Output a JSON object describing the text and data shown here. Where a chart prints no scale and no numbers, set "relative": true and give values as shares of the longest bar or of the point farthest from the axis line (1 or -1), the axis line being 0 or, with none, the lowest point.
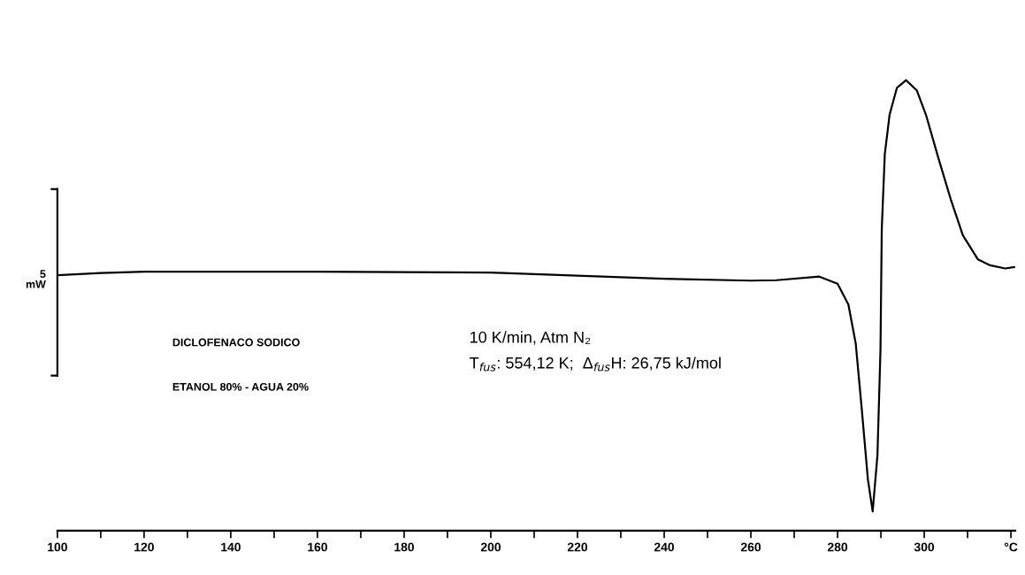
{
  "chart_data": {
    "type": "line",
    "relative": true,
    "color": "#000000",
    "x": [
      100,
      110,
      120,
      140,
      160,
      180,
      200,
      220,
      240,
      260,
      265.9,
      275.8,
      280,
      282.5,
      284.2,
      285.6,
      287.0,
      288.1,
      289.2,
      289.9,
      290.2,
      290.9,
      292.0,
      293.7,
      295.8,
      298.3,
      300.4,
      303.2,
      306.1,
      308.9,
      312.4,
      315.2,
      318.7,
      320.8
    ],
    "values": [
      0.567,
      0.572,
      0.575,
      0.575,
      0.575,
      0.574,
      0.573,
      0.566,
      0.559,
      0.555,
      0.556,
      0.564,
      0.548,
      0.502,
      0.415,
      0.268,
      0.114,
      0.043,
      0.167,
      0.401,
      0.669,
      0.836,
      0.923,
      0.983,
      1.0,
      0.977,
      0.923,
      0.829,
      0.736,
      0.656,
      0.602,
      0.589,
      0.582,
      0.585
    ],
    "xlim": [
      100,
      321
    ],
    "xticks": [
      100,
      {
        "value": 110,
        "label": null
      },
      120,
      {
        "value": 130,
        "label": null
      },
      140,
      {
        "value": 150,
        "label": null
      },
      160,
      {
        "value": 170,
        "label": null
      },
      180,
      {
        "value": 190,
        "label": null
      },
      200,
      {
        "value": 210,
        "label": null
      },
      220,
      {
        "value": 230,
        "label": null
      },
      240,
      {
        "value": 250,
        "label": null
      },
      260,
      {
        "value": 270,
        "label": null
      },
      280,
      {
        "value": 290,
        "label": null
      },
      300,
      {
        "value": 310,
        "label": null
      },
      {
        "value": 320,
        "label": "°C"
      }
    ],
    "tick_labels": "x",
    "grid": false,
    "legend": false,
    "annotations": [
      "5\nmW",
      "DICLOFENACO SODICO",
      "ETANOL 80% - AGUA 20%",
      "10 K/min, Atm N₂",
      "T$_{fus}$: 554,12 K;  Δ$_{fus}$H: 26,75 kJ/mol"
    ]
  }
}
